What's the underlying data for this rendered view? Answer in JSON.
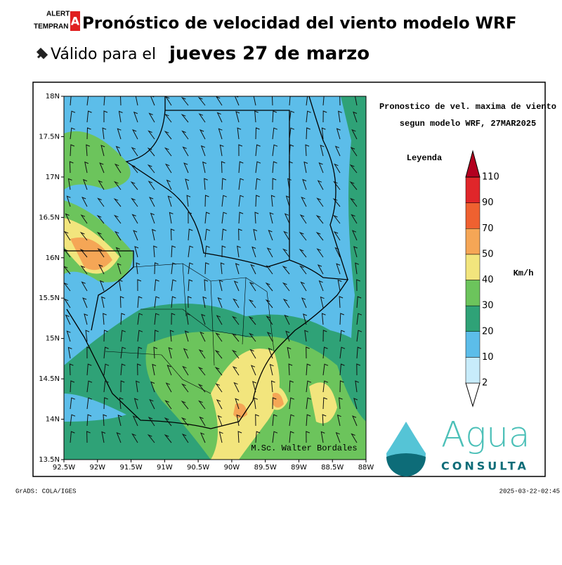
{
  "header": {
    "logo_top": "ALERT",
    "logo_bottom": "TEMPRAN",
    "logo_mark": "A",
    "title": "Pronóstico de velocidad del viento modelo WRF",
    "subtitle_prefix": "Válido para el",
    "subtitle_date": "jueves 27 de marzo"
  },
  "map": {
    "title_line1": "Pronostico de vel. maxima de viento",
    "title_line2": "segun modelo WRF, 27MAR2025",
    "lat_labels": [
      "18N",
      "17.5N",
      "17N",
      "16.5N",
      "16N",
      "15.5N",
      "15N",
      "14.5N",
      "14N",
      "13.5N"
    ],
    "lon_labels": [
      "92.5W",
      "92W",
      "91.5W",
      "91W",
      "90.5W",
      "90W",
      "89.5W",
      "89W",
      "88.5W",
      "88W"
    ],
    "credit": "M.Sc. Walter Bordales"
  },
  "legend": {
    "title": "Leyenda",
    "unit": "Km/h",
    "levels": [
      2,
      10,
      20,
      30,
      40,
      50,
      70,
      90,
      110
    ],
    "colors": [
      "#ffffff",
      "#c8ecfb",
      "#5cbde9",
      "#2fa277",
      "#6cc45c",
      "#f2e57d",
      "#f5a656",
      "#ef6130",
      "#e0262a",
      "#b3001f"
    ]
  },
  "brand": {
    "name": "Agua",
    "tagline": "CONSULTA"
  },
  "footer": {
    "left": "GrADS: COLA/IGES",
    "right": "2025-03-22-02:45"
  }
}
